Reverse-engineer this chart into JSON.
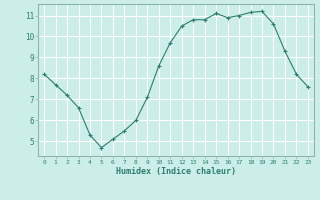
{
  "x": [
    0,
    1,
    2,
    3,
    4,
    5,
    6,
    7,
    8,
    9,
    10,
    11,
    12,
    13,
    14,
    15,
    16,
    17,
    18,
    19,
    20,
    21,
    22,
    23
  ],
  "y": [
    8.2,
    7.7,
    7.2,
    6.6,
    5.3,
    4.7,
    5.1,
    5.5,
    6.0,
    7.1,
    8.6,
    9.7,
    10.5,
    10.8,
    10.8,
    11.1,
    10.9,
    11.0,
    11.15,
    11.2,
    10.6,
    9.3,
    8.2,
    7.6
  ],
  "line_color": "#2e7d70",
  "marker": "+",
  "marker_size": 3,
  "background_color": "#cceee8",
  "grid_color": "#ffffff",
  "xlabel": "Humidex (Indice chaleur)",
  "xlim": [
    -0.5,
    23.5
  ],
  "ylim": [
    4.3,
    11.55
  ],
  "yticks": [
    5,
    6,
    7,
    8,
    9,
    10,
    11
  ],
  "xticks": [
    0,
    1,
    2,
    3,
    4,
    5,
    6,
    7,
    8,
    9,
    10,
    11,
    12,
    13,
    14,
    15,
    16,
    17,
    18,
    19,
    20,
    21,
    22,
    23
  ],
  "xtick_labels": [
    "0",
    "1",
    "2",
    "3",
    "4",
    "5",
    "6",
    "7",
    "8",
    "9",
    "10",
    "11",
    "12",
    "13",
    "14",
    "15",
    "16",
    "17",
    "18",
    "19",
    "20",
    "21",
    "22",
    "23"
  ],
  "tick_color": "#2e7d70",
  "label_color": "#2e7d70",
  "spine_color": "#8ab8b0"
}
